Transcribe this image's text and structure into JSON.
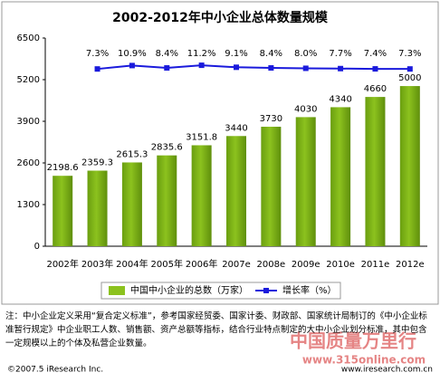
{
  "chart_data": {
    "type": "bar",
    "title": "2002-2012年中小企业总体数量规模",
    "categories": [
      "2002年",
      "2003年",
      "2004年",
      "2005年",
      "2006年",
      "2007e",
      "2008e",
      "2009e",
      "2010e",
      "2011e",
      "2012e"
    ],
    "series": [
      {
        "name": "中国中小企业的总数（万家）",
        "color": "#8cc21e",
        "type": "bar",
        "values": [
          2198.6,
          2359.3,
          2615.3,
          2835.6,
          3151.8,
          3440,
          3730,
          4030,
          4340,
          4660,
          5000
        ]
      },
      {
        "name": "增长率（%）",
        "color": "#1a1adc",
        "type": "line",
        "axis": "y2",
        "values": [
          null,
          7.3,
          10.9,
          8.4,
          11.2,
          9.1,
          8.4,
          8.0,
          7.7,
          7.4,
          7.3
        ],
        "value_labels": [
          null,
          "7.3%",
          "10.9%",
          "8.4%",
          "11.2%",
          "9.1%",
          "8.4%",
          "8.0%",
          "7.7%",
          "7.4%",
          "7.3%"
        ]
      }
    ],
    "ylim": [
      0,
      6500
    ],
    "yticks": [
      0,
      1300,
      2600,
      3900,
      5200,
      6500
    ],
    "y2lim": [
      -180,
      40
    ],
    "legend": "bottom",
    "note": "注：中小企业定义采用“复合定义标准”，参考国家经贸委、国家计委、财政部、国家统计局制订的《中小企业标准暂行规定》中企业职工人数、销售额、资产总额等指标，结合行业特点制定的大中小企业划分标准，其中包含一定规模以上的个体及私营企业数量。",
    "source": "©2007.5 iResearch Inc.",
    "website": "www.iresearch.com.cn",
    "watermark": [
      "中国质量万里行",
      "www.315online.com"
    ]
  }
}
